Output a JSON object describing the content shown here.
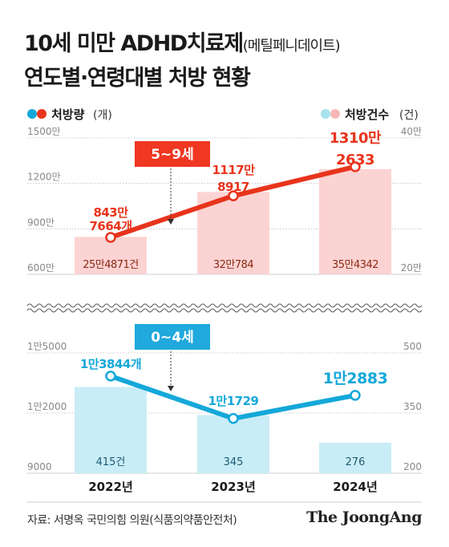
{
  "title": {
    "main": "10세 미만 ADHD치료제",
    "sub": "(메틸페니데이트)",
    "line2": "연도별·연령대별 처방 현황"
  },
  "legend_left": {
    "main": "처방량",
    "unit": "(개)"
  },
  "legend_right": {
    "main": "처방건수",
    "unit": "(건)"
  },
  "colors": {
    "red": "#e8341c",
    "red_bar": "#fcd3d3",
    "blue": "#14a8d9",
    "blue_bar": "#c9edf6",
    "grid": "#bbbbbb",
    "callout_red": "#ef3722",
    "callout_blue": "#20a9dc"
  },
  "chart_data": [
    {
      "type": "bar+line",
      "panel": "top",
      "callout": "5~9세",
      "categories": [
        "2022년",
        "2023년",
        "2024년"
      ],
      "y_left": {
        "ticks": [
          "1500만",
          "1200만",
          "900만",
          "600만"
        ],
        "tick_values": [
          15000000,
          12000000,
          9000000,
          6000000
        ],
        "range": [
          6000000,
          15000000
        ]
      },
      "y_right": {
        "ticks": [
          "40만",
          "20만"
        ],
        "tick_values": [
          400000,
          200000
        ],
        "range": [
          200000,
          400000
        ]
      },
      "line": {
        "name": "처방량",
        "values": [
          8437664,
          11178917,
          13102633
        ],
        "labels_top": [
          "843만",
          "1117만",
          "1310만"
        ],
        "labels_bottom": [
          "7664개",
          "8917",
          "2633"
        ]
      },
      "bars": {
        "name": "처방건수",
        "values": [
          254871,
          320784,
          354342
        ],
        "labels": [
          "25만4871건",
          "32만784",
          "35만4342"
        ]
      }
    },
    {
      "type": "bar+line",
      "panel": "bottom",
      "callout": "0~4세",
      "categories": [
        "2022년",
        "2023년",
        "2024년"
      ],
      "y_left": {
        "ticks": [
          "1만5000",
          "1만2000",
          "9000"
        ],
        "tick_values": [
          15000,
          12000,
          9000
        ],
        "range": [
          9000,
          15000
        ]
      },
      "y_right": {
        "ticks": [
          "500",
          "350",
          "200"
        ],
        "tick_values": [
          500,
          350,
          200
        ],
        "range": [
          200,
          500
        ]
      },
      "line": {
        "name": "처방량",
        "values": [
          13844,
          11729,
          12883
        ],
        "labels": [
          "1만3844개",
          "1만1729",
          "1만2883"
        ]
      },
      "bars": {
        "name": "처방건수",
        "values": [
          415,
          345,
          276
        ],
        "labels": [
          "415건",
          "345",
          "276"
        ]
      }
    }
  ],
  "x_labels": [
    "2022년",
    "2023년",
    "2024년"
  ],
  "source": "자료: 서명옥 국민의힘 의원(식품의약품안전처)",
  "brand": "The JoongAng"
}
